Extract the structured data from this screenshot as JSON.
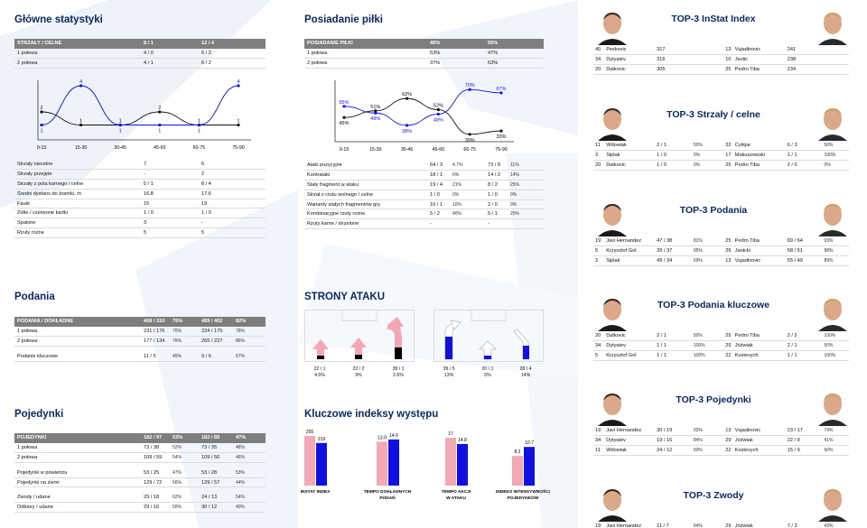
{
  "colors": {
    "title": "#0b2a63",
    "blue": "#1010e0",
    "pink": "#f4a7b4",
    "header": "#7e7e7e"
  },
  "main": {
    "title": "Główne statystyki",
    "header": [
      "STRZAŁY / CELNE",
      "8 / 1",
      "12 / 4"
    ],
    "rows": [
      [
        "1 połowa",
        "4 / 0",
        "6 / 2"
      ],
      [
        "2 połowa",
        "4 / 1",
        "6 / 2"
      ]
    ],
    "chart": {
      "x": [
        "0-15",
        "15-30",
        "30-45",
        "45-60",
        "60-75",
        "75-90"
      ],
      "black": [
        2,
        1,
        1,
        2,
        1,
        1
      ],
      "blue": [
        1,
        4,
        1,
        1,
        1,
        4
      ]
    },
    "rows2": [
      [
        "Strzały niecelne",
        "7",
        "6"
      ],
      [
        "Strzały przejęte",
        "-",
        "2"
      ],
      [
        "Strzały z pola karnego / celne",
        "5 / 1",
        "8 / 4"
      ],
      [
        "Średni dystans do bramki, m",
        "16.8",
        "17.6"
      ],
      [
        "Faule",
        "15",
        "19"
      ],
      [
        "Żółte / czerwone kartki",
        "1 / 0",
        "1 / 0"
      ],
      [
        "Spalone",
        "3",
        "-"
      ],
      [
        "Rzuty rożne",
        "5",
        "5"
      ]
    ]
  },
  "possession": {
    "title": "Posiadanie piłki",
    "header": [
      "POSIADANIE PIŁKI",
      "45%",
      "55%"
    ],
    "rows": [
      [
        "1 połowa",
        "53%",
        "47%"
      ],
      [
        "2 połowa",
        "37%",
        "63%"
      ]
    ],
    "chart": {
      "x": [
        "0-15",
        "15-30",
        "30-45",
        "45-60",
        "60-75",
        "75-90"
      ],
      "black": [
        "45%",
        "51%",
        "62%",
        "52%",
        "30%",
        "33%"
      ],
      "blue": [
        "55%",
        "49%",
        "38%",
        "48%",
        "70%",
        "67%"
      ],
      "black_v": [
        45,
        51,
        62,
        52,
        30,
        33
      ],
      "blue_v": [
        55,
        49,
        38,
        48,
        70,
        67
      ]
    },
    "rows2": [
      [
        "Ataki pozycyjne",
        "64 / 3",
        "4.7%",
        "73 / 8",
        "11%"
      ],
      [
        "Kontrataki",
        "18 / 1",
        "6%",
        "14 / 2",
        "14%"
      ],
      [
        "Stały fragment w ataku",
        "19 / 4",
        "21%",
        "8 / 2",
        "25%"
      ],
      [
        "Strzał z rzutu wolnego / celne",
        "1 / 0",
        "0%",
        "1 / 0",
        "0%"
      ],
      [
        "Warianty stałych fragmentów gry",
        "10 / 1",
        "10%",
        "2 / 0",
        "0%"
      ],
      [
        "Kombinacyjne rzuty rożne",
        "5 / 2",
        "40%",
        "5 / 1",
        "20%"
      ],
      [
        "Rzuty karne / strzelone",
        "-",
        "",
        "-",
        ""
      ]
    ]
  },
  "passes": {
    "title": "Podania",
    "header": [
      "PODANIA / DOKŁADNE",
      "408 / 310",
      "76%",
      "489 / 402",
      "82%"
    ],
    "rows": [
      [
        "1 połowa",
        "231 / 176",
        "76%",
        "224 / 175",
        "78%"
      ],
      [
        "2 połowa",
        "177 / 134",
        "76%",
        "265 / 227",
        "86%"
      ],
      [
        "Podanie kluczowe",
        "11 / 5",
        "45%",
        "9 / 6",
        "67%"
      ]
    ]
  },
  "duels": {
    "title": "Pojedynki",
    "header": [
      "POJEDYNKI",
      "182 / 97",
      "53%",
      "182 / 85",
      "47%"
    ],
    "rows": [
      [
        "1 połowa",
        "73 / 38",
        "52%",
        "73 / 35",
        "48%"
      ],
      [
        "2 połowa",
        "109 / 59",
        "54%",
        "109 / 50",
        "46%"
      ],
      [
        "Pojedynki w powietrzu",
        "53 / 25",
        "47%",
        "53 / 28",
        "53%"
      ],
      [
        "Pojedynki na ziemi",
        "129 / 72",
        "56%",
        "129 / 57",
        "44%"
      ],
      [
        "Zwody / udane",
        "29 / 18",
        "62%",
        "24 / 13",
        "54%"
      ],
      [
        "Odbiory / udane",
        "29 / 16",
        "55%",
        "30 / 12",
        "40%"
      ]
    ]
  },
  "attack": {
    "title": "STRONY ATAKU",
    "left": [
      {
        "a": "22 / 1",
        "b": "4.5%"
      },
      {
        "a": "22 / 2",
        "b": "9%"
      },
      {
        "a": "38 / 1",
        "b": "2.6%"
      }
    ],
    "right": [
      {
        "a": "39 / 5",
        "b": "13%"
      },
      {
        "a": "20 / 1",
        "b": "5%"
      },
      {
        "a": "28 / 4",
        "b": "14%"
      }
    ]
  },
  "indexes": {
    "title": "Kluczowe indeksy występu",
    "items": [
      {
        "label": "INSTAT INDEX",
        "a": "255",
        "b": "219",
        "va": 255,
        "vb": 219,
        "max": 260
      },
      {
        "label": "TEMPO DOKŁADNYCH PODAŃ",
        "a": "13.9",
        "b": "14.6",
        "va": 13.9,
        "vb": 14.6,
        "max": 16
      },
      {
        "label": "TEMPO AKCJI W ATAKU",
        "a": "17",
        "b": "14.8",
        "va": 17,
        "vb": 14.8,
        "max": 18
      },
      {
        "label": "INDEKS INTENSYWNOŚCI POJEDYNKÓW",
        "a": "8.2",
        "b": "10.7",
        "va": 8.2,
        "vb": 10.7,
        "max": 14
      }
    ]
  },
  "top": [
    {
      "title": "TOP-3 InStat Index",
      "rows": [
        [
          "40",
          "Peskovic",
          "317",
          "",
          "13",
          "Vujadinovic",
          "241",
          ""
        ],
        [
          "34",
          "Dytyatev",
          "316",
          "",
          "10",
          "Jevtic",
          "238",
          ""
        ],
        [
          "20",
          "Datkovic",
          "305",
          "",
          "25",
          "Pedro Tiba",
          "234",
          ""
        ]
      ]
    },
    {
      "title": "TOP-3 Strzały / celne",
      "rows": [
        [
          "11",
          "Wdowiak",
          "2 / 1",
          "50%",
          "32",
          "Cytkjar",
          "6 / 3",
          "50%"
        ],
        [
          "3",
          "Siplak",
          "1 / 0",
          "0%",
          "17",
          "Makuszewski",
          "1 / 1",
          "100%"
        ],
        [
          "20",
          "Datkovic",
          "1 / 0",
          "0%",
          "25",
          "Pedro Tiba",
          "2 / 0",
          "0%"
        ]
      ]
    },
    {
      "title": "TOP-3 Podania",
      "rows": [
        [
          "19",
          "Javi Hernandez",
          "47 / 38",
          "81%",
          "25",
          "Pedro Tiba",
          "69 / 64",
          "93%"
        ],
        [
          "5",
          "Krzysztof Gol",
          "39 / 37",
          "95%",
          "26",
          "Janicki",
          "58 / 51",
          "88%"
        ],
        [
          "3",
          "Siplak",
          "49 / 34",
          "69%",
          "13",
          "Vujadinovic",
          "55 / 49",
          "89%"
        ]
      ]
    },
    {
      "title": "TOP-3 Podania kluczowe",
      "rows": [
        [
          "20",
          "Datkovic",
          "2 / 1",
          "50%",
          "25",
          "Pedro Tiba",
          "2 / 2",
          "100%"
        ],
        [
          "34",
          "Dytyatev",
          "1 / 1",
          "100%",
          "29",
          "Jóźwiak",
          "2 / 1",
          "50%"
        ],
        [
          "5",
          "Krzysztof Gol",
          "1 / 1",
          "100%",
          "22",
          "Kostevych",
          "1 / 1",
          "100%"
        ]
      ]
    },
    {
      "title": "TOP-3 Pojedynki",
      "rows": [
        [
          "19",
          "Javi Hernandez",
          "30 / 19",
          "63%",
          "13",
          "Vujadinovic",
          "23 / 17",
          "74%"
        ],
        [
          "34",
          "Dytyatev",
          "19 / 16",
          "84%",
          "29",
          "Jóźwiak",
          "22 / 9",
          "41%"
        ],
        [
          "11",
          "Wdowiak",
          "24 / 12",
          "50%",
          "22",
          "Kostevych",
          "15 / 9",
          "60%"
        ]
      ]
    },
    {
      "title": "TOP-3 Zwody",
      "rows": [
        [
          "19",
          "Javi Hernandez",
          "11 / 7",
          "64%",
          "29",
          "Jóźwiak",
          "7 / 3",
          "43%"
        ]
      ]
    }
  ]
}
